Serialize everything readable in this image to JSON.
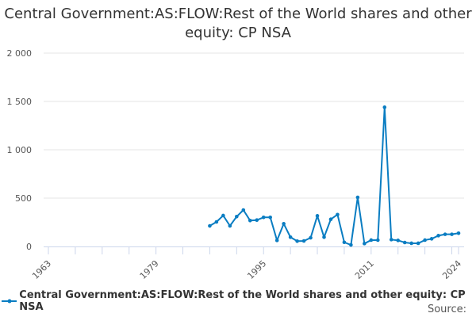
{
  "chart_data": {
    "type": "line",
    "title": "Central Government:AS:FLOW:Rest of the World shares and other equity: CP NSA",
    "x": [
      1987,
      1988,
      1989,
      1990,
      1991,
      1992,
      1993,
      1994,
      1995,
      1996,
      1997,
      1998,
      1999,
      2000,
      2001,
      2002,
      2003,
      2004,
      2005,
      2006,
      2007,
      2008,
      2009,
      2010,
      2011,
      2012,
      2013,
      2014,
      2015,
      2016,
      2017,
      2018,
      2019,
      2020,
      2021,
      2022,
      2023,
      2024
    ],
    "series": [
      {
        "name": "Central Government:AS:FLOW:Rest of the World shares and other equity: CP NSA",
        "color": "#0a7dc2",
        "values": [
          213,
          254,
          320,
          213,
          309,
          377,
          268,
          273,
          301,
          301,
          63,
          235,
          96,
          55,
          57,
          90,
          317,
          96,
          281,
          330,
          43,
          16,
          508,
          30,
          66,
          66,
          1440,
          71,
          63,
          41,
          33,
          33,
          66,
          79,
          112,
          126,
          126,
          137
        ]
      }
    ],
    "xlim": [
      1963,
      2024
    ],
    "ylim": [
      0,
      2000
    ],
    "x_tick_labels": [
      "1963",
      "1979",
      "1995",
      "2011",
      "2024"
    ],
    "y_ticks": [
      0,
      500,
      1000,
      1500,
      2000
    ],
    "y_tick_labels": [
      "0",
      "500",
      "1 000",
      "1 500",
      "2 000"
    ],
    "grid": "horizontal",
    "legend": "bottom",
    "source_label": "Source:"
  }
}
